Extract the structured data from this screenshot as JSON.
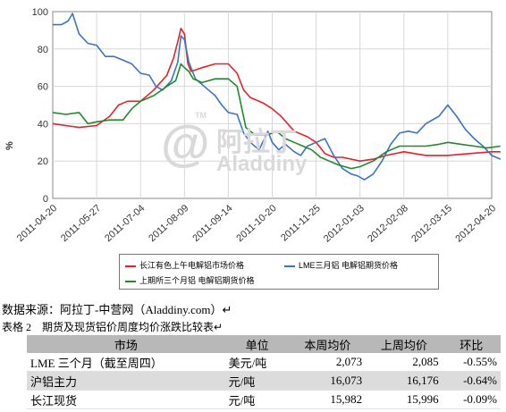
{
  "chart_data": {
    "type": "line",
    "ylabel": "%",
    "ylim": [
      0,
      100
    ],
    "yticks": [
      0,
      20,
      40,
      60,
      80,
      100
    ],
    "grid": true,
    "legend_position": "bottom",
    "x_ticks": [
      "2011-04-20",
      "2011-05-27",
      "2011-07-04",
      "2011-08-09",
      "2011-09-14",
      "2011-10-20",
      "2011-11-25",
      "2012-01-03",
      "2012-02-08",
      "2012-03-15",
      "2012-04-20"
    ],
    "series": [
      {
        "name": "长江有色上午电解铝市场价格",
        "color": "#e8202a",
        "points": [
          [
            0,
            40
          ],
          [
            0.3,
            39
          ],
          [
            0.6,
            38
          ],
          [
            1.0,
            39
          ],
          [
            1.3,
            44
          ],
          [
            1.5,
            50
          ],
          [
            1.7,
            52
          ],
          [
            2.0,
            52
          ],
          [
            2.3,
            58
          ],
          [
            2.6,
            66
          ],
          [
            2.75,
            75
          ],
          [
            2.85,
            84
          ],
          [
            2.92,
            91
          ],
          [
            3.0,
            88
          ],
          [
            3.08,
            72
          ],
          [
            3.15,
            68
          ],
          [
            3.4,
            70
          ],
          [
            3.7,
            72
          ],
          [
            4.0,
            72
          ],
          [
            4.2,
            67
          ],
          [
            4.35,
            58
          ],
          [
            4.5,
            54
          ],
          [
            4.8,
            51
          ],
          [
            5.0,
            48
          ],
          [
            5.2,
            44
          ],
          [
            5.5,
            36
          ],
          [
            5.8,
            33
          ],
          [
            6.0,
            30
          ],
          [
            6.2,
            24
          ],
          [
            6.4,
            22
          ],
          [
            6.6,
            22
          ],
          [
            7.0,
            20
          ],
          [
            7.3,
            21
          ],
          [
            7.6,
            23
          ],
          [
            8.0,
            25
          ],
          [
            8.5,
            23
          ],
          [
            9.0,
            23
          ],
          [
            9.5,
            24
          ],
          [
            10.0,
            25
          ],
          [
            10.2,
            25
          ]
        ]
      },
      {
        "name": "LME三月铝 电解铝期货价格",
        "color": "#3a74c4",
        "points": [
          [
            0,
            93
          ],
          [
            0.2,
            93
          ],
          [
            0.35,
            95
          ],
          [
            0.45,
            99
          ],
          [
            0.6,
            88
          ],
          [
            0.8,
            83
          ],
          [
            1.0,
            82
          ],
          [
            1.2,
            76
          ],
          [
            1.4,
            76
          ],
          [
            1.6,
            74
          ],
          [
            1.8,
            72
          ],
          [
            2.0,
            67
          ],
          [
            2.2,
            66
          ],
          [
            2.35,
            60
          ],
          [
            2.5,
            58
          ],
          [
            2.7,
            63
          ],
          [
            2.85,
            73
          ],
          [
            2.92,
            87
          ],
          [
            3.0,
            85
          ],
          [
            3.1,
            73
          ],
          [
            3.25,
            64
          ],
          [
            3.35,
            62
          ],
          [
            3.55,
            58
          ],
          [
            3.7,
            55
          ],
          [
            3.85,
            50
          ],
          [
            4.0,
            46
          ],
          [
            4.2,
            45
          ],
          [
            4.35,
            35
          ],
          [
            4.5,
            30
          ],
          [
            4.7,
            26
          ],
          [
            4.9,
            36
          ],
          [
            5.0,
            30
          ],
          [
            5.15,
            26
          ],
          [
            5.3,
            29
          ],
          [
            5.5,
            25
          ],
          [
            5.65,
            23
          ],
          [
            5.8,
            28
          ],
          [
            6.0,
            30
          ],
          [
            6.2,
            32
          ],
          [
            6.4,
            23
          ],
          [
            6.6,
            16
          ],
          [
            6.8,
            13
          ],
          [
            6.95,
            12
          ],
          [
            7.1,
            10
          ],
          [
            7.3,
            13
          ],
          [
            7.5,
            20
          ],
          [
            7.7,
            29
          ],
          [
            7.9,
            35
          ],
          [
            8.1,
            36
          ],
          [
            8.3,
            35
          ],
          [
            8.5,
            40
          ],
          [
            8.8,
            44
          ],
          [
            9.0,
            50
          ],
          [
            9.2,
            44
          ],
          [
            9.4,
            37
          ],
          [
            9.6,
            32
          ],
          [
            9.8,
            28
          ],
          [
            10.0,
            23
          ],
          [
            10.2,
            21
          ]
        ]
      },
      {
        "name": "上期所三个月铝 电解铝期货价格",
        "color": "#1f8a2a",
        "points": [
          [
            0,
            46
          ],
          [
            0.3,
            45
          ],
          [
            0.6,
            46
          ],
          [
            0.8,
            40
          ],
          [
            1.0,
            41
          ],
          [
            1.3,
            42
          ],
          [
            1.6,
            42
          ],
          [
            1.8,
            48
          ],
          [
            2.0,
            52
          ],
          [
            2.3,
            55
          ],
          [
            2.6,
            60
          ],
          [
            2.8,
            63
          ],
          [
            2.92,
            72
          ],
          [
            3.0,
            70
          ],
          [
            3.1,
            68
          ],
          [
            3.2,
            64
          ],
          [
            3.4,
            62
          ],
          [
            3.7,
            64
          ],
          [
            4.0,
            64
          ],
          [
            4.2,
            60
          ],
          [
            4.4,
            38
          ],
          [
            4.6,
            34
          ],
          [
            4.9,
            34
          ],
          [
            5.1,
            36
          ],
          [
            5.3,
            32
          ],
          [
            5.5,
            30
          ],
          [
            5.7,
            28
          ],
          [
            5.9,
            26
          ],
          [
            6.1,
            22
          ],
          [
            6.3,
            20
          ],
          [
            6.5,
            18
          ],
          [
            6.8,
            16
          ],
          [
            7.0,
            17
          ],
          [
            7.3,
            20
          ],
          [
            7.6,
            25
          ],
          [
            7.9,
            28
          ],
          [
            8.2,
            28
          ],
          [
            8.5,
            28
          ],
          [
            8.8,
            29
          ],
          [
            9.0,
            30
          ],
          [
            9.3,
            29
          ],
          [
            9.6,
            28
          ],
          [
            9.9,
            27
          ],
          [
            10.2,
            28
          ]
        ]
      }
    ]
  },
  "watermark": {
    "brand_cn": "阿拉丁",
    "brand_en": "Aladdiny",
    "tm": "TM"
  },
  "source_text": "数据来源：阿拉丁-中营网（Aladdiny.com）↵",
  "table_caption": "表格 2　期货及现货铝价周度均价涨跌比较表↵",
  "table": {
    "headers": [
      "市场",
      "单位",
      "本周均价",
      "上周均价",
      "环比"
    ],
    "rows": [
      [
        "LME 三个月（截至周四）",
        "美元/吨",
        "2,073",
        "2,085",
        "-0.55%"
      ],
      [
        "沪铝主力",
        "元/吨",
        "16,073",
        "16,176",
        "-0.64%"
      ],
      [
        "长江现货",
        "元/吨",
        "15,982",
        "15,996",
        "-0.09%"
      ]
    ]
  }
}
